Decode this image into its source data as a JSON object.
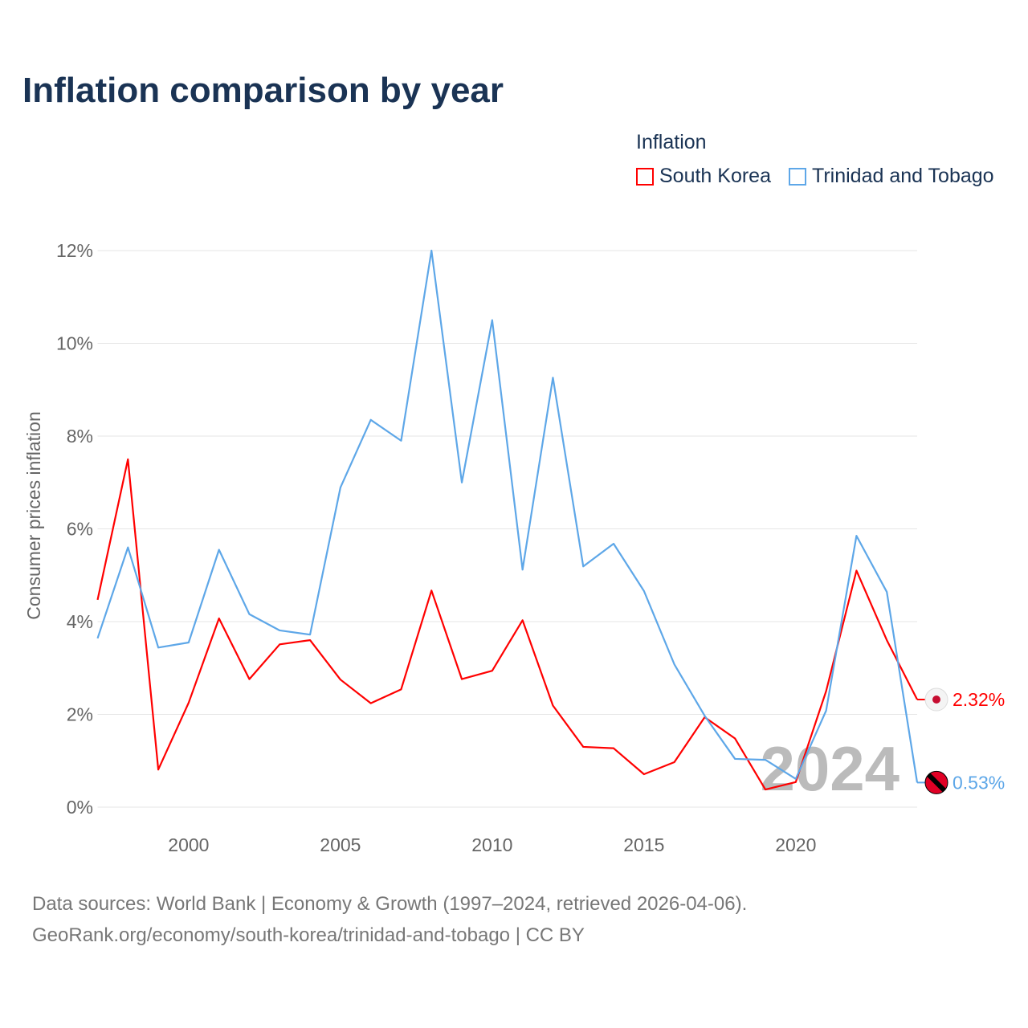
{
  "title": "Inflation comparison by year",
  "legend": {
    "title": "Inflation",
    "items": [
      "South Korea",
      "Trinidad and Tobago"
    ]
  },
  "footer": {
    "line1": "Data sources: World Bank | Economy & Growth (1997–2024, retrieved 2026-04-06).",
    "line2": "GeoRank.org/economy/south-korea/trinidad-and-tobago | CC BY"
  },
  "chart_data": {
    "type": "line",
    "title": "Inflation comparison by year",
    "ylabel": "Consumer prices inflation",
    "xlabel": "",
    "ylim": [
      0,
      12
    ],
    "xlim": [
      1997,
      2024
    ],
    "yticks": [
      0,
      2,
      4,
      6,
      8,
      10,
      12
    ],
    "ytick_labels": [
      "0%",
      "2%",
      "4%",
      "6%",
      "8%",
      "10%",
      "12%"
    ],
    "xticks": [
      2000,
      2005,
      2010,
      2015,
      2020
    ],
    "xtick_labels": [
      "2000",
      "2005",
      "2010",
      "2015",
      "2020"
    ],
    "grid": true,
    "legend_position": "top-right",
    "watermark_year": "2024",
    "x": [
      1997,
      1998,
      1999,
      2000,
      2001,
      2002,
      2003,
      2004,
      2005,
      2006,
      2007,
      2008,
      2009,
      2010,
      2011,
      2012,
      2013,
      2014,
      2015,
      2016,
      2017,
      2018,
      2019,
      2020,
      2021,
      2022,
      2023,
      2024
    ],
    "series": [
      {
        "name": "South Korea",
        "color": "#ff0000",
        "end_label": "2.32%",
        "values": [
          4.47,
          7.5,
          0.81,
          2.25,
          4.07,
          2.76,
          3.51,
          3.6,
          2.75,
          2.24,
          2.54,
          4.67,
          2.76,
          2.94,
          4.03,
          2.19,
          1.3,
          1.27,
          0.71,
          0.97,
          1.94,
          1.48,
          0.38,
          0.54,
          2.5,
          5.1,
          3.6,
          2.32
        ]
      },
      {
        "name": "Trinidad and Tobago",
        "color": "#5ea7e8",
        "end_label": "0.53%",
        "values": [
          3.64,
          5.6,
          3.44,
          3.55,
          5.55,
          4.16,
          3.81,
          3.72,
          6.89,
          8.35,
          7.9,
          12.0,
          7.0,
          10.5,
          5.12,
          9.26,
          5.19,
          5.68,
          4.66,
          3.08,
          1.97,
          1.04,
          1.02,
          0.61,
          2.08,
          5.85,
          4.64,
          0.53
        ]
      }
    ]
  }
}
